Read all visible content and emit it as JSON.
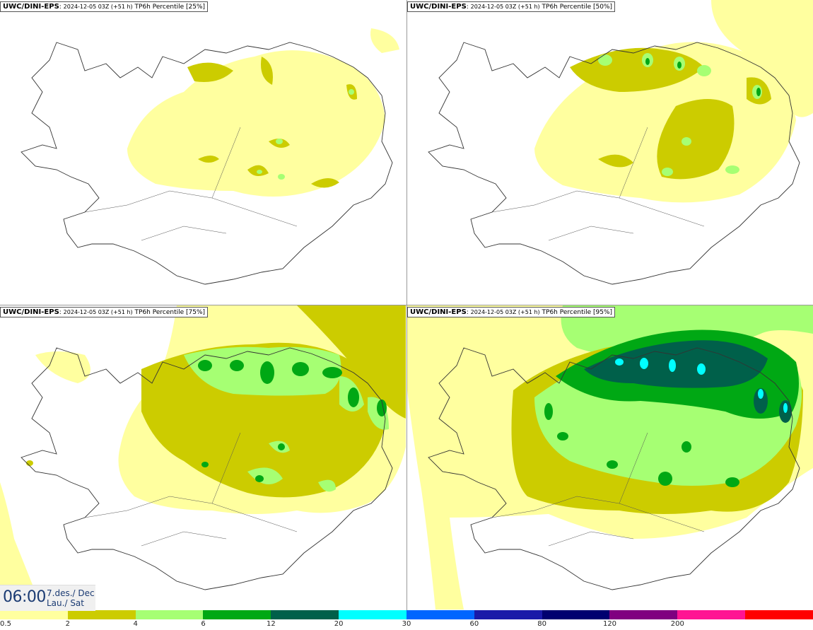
{
  "panels": [
    {
      "model": "UWC/DINI-EPS",
      "run": "2024-12-05 03Z (+51 h)",
      "product": "TP6h Percentile [25%]"
    },
    {
      "model": "UWC/DINI-EPS",
      "run": "2024-12-05 03Z (+51 h)",
      "product": "TP6h Percentile [50%]"
    },
    {
      "model": "UWC/DINI-EPS",
      "run": "2024-12-05 03Z (+51 h)",
      "product": "TP6h Percentile [75%]"
    },
    {
      "model": "UWC/DINI-EPS",
      "run": "2024-12-05 03Z (+51 h)",
      "product": "TP6h Percentile [95%]"
    }
  ],
  "valid_time": {
    "time": "06:00",
    "date_line1": "7.des./ Dec",
    "date_line2": "Lau./ Sat"
  },
  "legend": {
    "labels": [
      "0.5",
      "2",
      "4",
      "6",
      "12",
      "20",
      "30",
      "60",
      "80",
      "120",
      "200"
    ],
    "colors": [
      "#ffff9f",
      "#cccc00",
      "#a6ff73",
      "#00a814",
      "#00604a",
      "#00ffff",
      "#0066ff",
      "#1a1aa8",
      "#000070",
      "#800080",
      "#ff1493",
      "#ff0000"
    ]
  }
}
